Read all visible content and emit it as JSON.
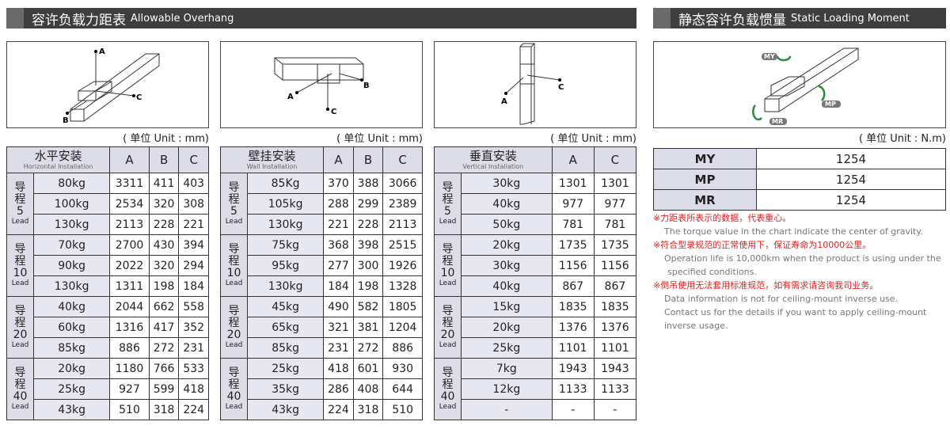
{
  "overhang": {
    "title_zh": "容许负载力距表",
    "title_en": "Allowable Overhang",
    "unit": "( 单位 Unit : mm)"
  },
  "moment": {
    "title_zh": "静态容许负载惯量",
    "title_en": "Static Loading Moment",
    "unit": "( 单位 Unit : N.m)",
    "rows": [
      {
        "k": "MY",
        "v": "1254"
      },
      {
        "k": "MP",
        "v": "1254"
      },
      {
        "k": "MR",
        "v": "1254"
      }
    ]
  },
  "lead_label": {
    "zh1": "导",
    "zh2": "程",
    "en": "Lead"
  },
  "tables": [
    {
      "head_zh": "水平安装",
      "head_en": "Horizontal Installation",
      "cols": [
        "A",
        "B",
        "C"
      ],
      "groups": [
        {
          "lead": "5",
          "rows": [
            [
              "80kg",
              "3311",
              "411",
              "403"
            ],
            [
              "100kg",
              "2534",
              "320",
              "308"
            ],
            [
              "130kg",
              "2113",
              "228",
              "221"
            ]
          ]
        },
        {
          "lead": "10",
          "rows": [
            [
              "70kg",
              "2700",
              "430",
              "394"
            ],
            [
              "90kg",
              "2022",
              "320",
              "294"
            ],
            [
              "130kg",
              "1311",
              "198",
              "184"
            ]
          ]
        },
        {
          "lead": "20",
          "rows": [
            [
              "40kg",
              "2044",
              "662",
              "558"
            ],
            [
              "60kg",
              "1316",
              "417",
              "352"
            ],
            [
              "85kg",
              "886",
              "272",
              "231"
            ]
          ]
        },
        {
          "lead": "40",
          "rows": [
            [
              "20kg",
              "1180",
              "766",
              "533"
            ],
            [
              "25kg",
              "927",
              "599",
              "418"
            ],
            [
              "43kg",
              "510",
              "318",
              "224"
            ]
          ]
        }
      ]
    },
    {
      "head_zh": "壁挂安装",
      "head_en": "Wall Installation",
      "cols": [
        "A",
        "B",
        "C"
      ],
      "groups": [
        {
          "lead": "5",
          "rows": [
            [
              "85Kg",
              "370",
              "388",
              "3066"
            ],
            [
              "105kg",
              "288",
              "299",
              "2389"
            ],
            [
              "130kg",
              "221",
              "228",
              "2113"
            ]
          ]
        },
        {
          "lead": "10",
          "rows": [
            [
              "75kg",
              "368",
              "398",
              "2515"
            ],
            [
              "95kg",
              "277",
              "300",
              "1926"
            ],
            [
              "130kg",
              "184",
              "198",
              "1328"
            ]
          ]
        },
        {
          "lead": "20",
          "rows": [
            [
              "45kg",
              "490",
              "582",
              "1805"
            ],
            [
              "65kg",
              "321",
              "381",
              "1204"
            ],
            [
              "85kg",
              "231",
              "272",
              "886"
            ]
          ]
        },
        {
          "lead": "40",
          "rows": [
            [
              "25kg",
              "418",
              "601",
              "930"
            ],
            [
              "35kg",
              "286",
              "408",
              "644"
            ],
            [
              "43kg",
              "224",
              "318",
              "510"
            ]
          ]
        }
      ]
    },
    {
      "head_zh": "垂直安装",
      "head_en": "Vertical Installation",
      "cols": [
        "A",
        "C"
      ],
      "groups": [
        {
          "lead": "5",
          "rows": [
            [
              "30kg",
              "1301",
              "1301"
            ],
            [
              "40kg",
              "977",
              "977"
            ],
            [
              "50kg",
              "781",
              "781"
            ]
          ]
        },
        {
          "lead": "10",
          "rows": [
            [
              "20kg",
              "1735",
              "1735"
            ],
            [
              "30kg",
              "1156",
              "1156"
            ],
            [
              "40kg",
              "867",
              "867"
            ]
          ]
        },
        {
          "lead": "20",
          "rows": [
            [
              "15kg",
              "1835",
              "1835"
            ],
            [
              "20kg",
              "1376",
              "1376"
            ],
            [
              "25kg",
              "1101",
              "1101"
            ]
          ]
        },
        {
          "lead": "40",
          "rows": [
            [
              "7kg",
              "1943",
              "1943"
            ],
            [
              "12kg",
              "1133",
              "1133"
            ],
            [
              "-",
              "-",
              "-"
            ]
          ]
        }
      ]
    }
  ],
  "diagram_labels": {
    "a": "A",
    "b": "B",
    "c": "C",
    "my": "MY",
    "mp": "MP",
    "mr": "MR"
  },
  "notes": [
    {
      "zh": "※力距表所表示的数据，代表重心。",
      "en": [
        "The torque value in the chart indicate the center of gravity."
      ]
    },
    {
      "zh": "※符合型录规范的正常使用下，保证寿命为10000公里。",
      "en": [
        "Operation life is 10,000km when the product is using under the",
        "specified conditions."
      ]
    },
    {
      "zh": "※倒吊使用无法套用标准规范，如有需求请咨询我司业务。",
      "en": [
        "Data information is not for ceiling-mount inverse use.",
        "Contact us for the details if you want to apply ceiling-mount",
        "inverse usage."
      ]
    }
  ]
}
